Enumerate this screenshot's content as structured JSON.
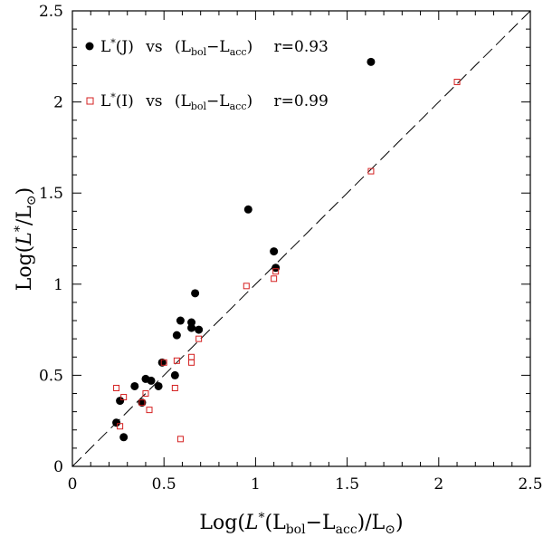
{
  "chart_data": {
    "type": "scatter",
    "xlabel": "Log(L*(Lbol−Lacc)/L⊙)",
    "ylabel": "Log(L*/L⊙)",
    "xlim": [
      0,
      2.5
    ],
    "ylim": [
      0,
      2.5
    ],
    "xticks": [
      "0",
      "0.5",
      "1",
      "1.5",
      "2",
      "2.5"
    ],
    "yticks": [
      "0",
      "0.5",
      "1",
      "1.5",
      "2",
      "2.5"
    ],
    "diagonal": {
      "style": "dashed",
      "from": [
        0,
        0
      ],
      "to": [
        2.5,
        2.5
      ]
    },
    "legend_position": "top-left",
    "series": [
      {
        "name": "L*(J) vs (Lbol−Lacc)",
        "r": "r=0.93",
        "marker": "filled-circle",
        "color": "#000000",
        "points": [
          [
            0.24,
            0.24
          ],
          [
            0.26,
            0.36
          ],
          [
            0.28,
            0.16
          ],
          [
            0.34,
            0.44
          ],
          [
            0.38,
            0.35
          ],
          [
            0.4,
            0.48
          ],
          [
            0.43,
            0.47
          ],
          [
            0.47,
            0.44
          ],
          [
            0.49,
            0.57
          ],
          [
            0.56,
            0.5
          ],
          [
            0.57,
            0.72
          ],
          [
            0.59,
            0.8
          ],
          [
            0.65,
            0.76
          ],
          [
            0.65,
            0.79
          ],
          [
            0.67,
            0.95
          ],
          [
            0.69,
            0.75
          ],
          [
            0.96,
            1.41
          ],
          [
            1.1,
            1.18
          ],
          [
            1.11,
            1.09
          ],
          [
            1.63,
            2.22
          ]
        ]
      },
      {
        "name": "L*(I) vs (Lbol−Lacc)",
        "r": "r=0.99",
        "marker": "open-square",
        "color": "#d42020",
        "points": [
          [
            0.24,
            0.43
          ],
          [
            0.26,
            0.22
          ],
          [
            0.28,
            0.38
          ],
          [
            0.38,
            0.35
          ],
          [
            0.4,
            0.4
          ],
          [
            0.42,
            0.31
          ],
          [
            0.5,
            0.57
          ],
          [
            0.56,
            0.43
          ],
          [
            0.57,
            0.58
          ],
          [
            0.59,
            0.15
          ],
          [
            0.65,
            0.57
          ],
          [
            0.65,
            0.6
          ],
          [
            0.69,
            0.7
          ],
          [
            0.95,
            0.99
          ],
          [
            1.1,
            1.03
          ],
          [
            1.11,
            1.07
          ],
          [
            1.63,
            1.62
          ],
          [
            2.1,
            2.11
          ]
        ]
      }
    ]
  },
  "legend": {
    "series1": {
      "prefix": "L",
      "sub": "*",
      "band": "(J)",
      "vs": "vs",
      "lbol": "L",
      "lbol_sub": "bol",
      "minus": "−",
      "lacc": "L",
      "lacc_sub": "acc",
      "r": "r=0.93"
    },
    "series2": {
      "prefix": "L",
      "sub": "*",
      "band": "(I)",
      "vs": "vs",
      "lbol": "L",
      "lbol_sub": "bol",
      "minus": "−",
      "lacc": "L",
      "lacc_sub": "acc",
      "r": "r=0.99"
    }
  },
  "axis_titles": {
    "x": {
      "log": "Log(",
      "L": "L",
      "star": "*",
      "open": "(L",
      "bol": "bol",
      "minus": "−L",
      "acc": "acc",
      "close": ")/L",
      "sun": "⊙",
      "end": ")"
    },
    "y": {
      "log": "Log(",
      "L": "L",
      "star": "*",
      "slash": "/L",
      "sun": "⊙",
      "end": ")"
    }
  }
}
